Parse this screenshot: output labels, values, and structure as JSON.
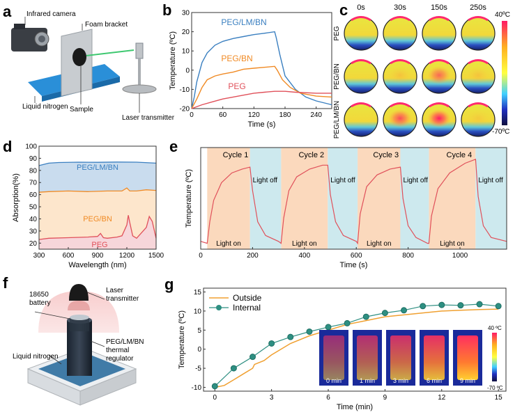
{
  "panel_letters": {
    "a": "a",
    "b": "b",
    "c": "c",
    "d": "d",
    "e": "e",
    "f": "f",
    "g": "g"
  },
  "panel_a": {
    "labels": {
      "camera": "Infrared camera",
      "bracket": "Foam bracket",
      "nitrogen": "Liquid nitrogen",
      "sample": "Sample",
      "laser": "Laser transmitter"
    }
  },
  "panel_c": {
    "times": [
      "0s",
      "30s",
      "150s",
      "250s"
    ],
    "rows": [
      "PEG",
      "PEG/BN",
      "PEG/LM/BN"
    ],
    "scale_max": "40ºC",
    "scale_min": "-70ºC",
    "colors": {
      "hot": "#ff2a6e",
      "mid": "#ffe03a",
      "cold": "#1a2a8a"
    }
  },
  "panel_f": {
    "labels": {
      "battery": "18650\nbattery",
      "laser": "Laser\ntransmitter",
      "regulator": "PEG/LM/BN\nthermal\nregulator",
      "nitrogen": "Liquid nitrogen"
    }
  },
  "panel_g_insets": {
    "times": [
      "0 min",
      "1 min",
      "3 min",
      "6 min",
      "9 min"
    ],
    "scale_max": "40 ºC",
    "scale_min": "-70 ºC"
  },
  "chart_data": [
    {
      "id": "b",
      "type": "line",
      "xlabel": "Time (s)",
      "ylabel": "Temperature (ºC)",
      "xlim": [
        0,
        270
      ],
      "ylim": [
        -20,
        30
      ],
      "xticks": [
        0,
        60,
        120,
        180,
        240
      ],
      "yticks": [
        -20,
        -10,
        0,
        10,
        20,
        30
      ],
      "series": [
        {
          "name": "PEG/LM/BN",
          "color": "#3a7fc0",
          "x": [
            0,
            5,
            10,
            20,
            30,
            45,
            60,
            80,
            100,
            120,
            140,
            160,
            163,
            170,
            180,
            200,
            220,
            240,
            270
          ],
          "y": [
            -20,
            -14,
            -6,
            4,
            9,
            13,
            15,
            16.5,
            17.5,
            18.5,
            19.2,
            20,
            17,
            8,
            -3,
            -10,
            -14,
            -16,
            -18
          ]
        },
        {
          "name": "PEG/BN",
          "color": "#f08a24",
          "x": [
            0,
            10,
            20,
            30,
            45,
            60,
            80,
            100,
            120,
            140,
            160,
            165,
            175,
            190,
            210,
            240,
            270
          ],
          "y": [
            -20,
            -15,
            -9,
            -5,
            -3,
            -2,
            -1,
            0.5,
            1,
            1.5,
            2,
            0,
            -5,
            -9,
            -12,
            -13.5,
            -14
          ]
        },
        {
          "name": "PEG",
          "color": "#e0505a",
          "x": [
            0,
            20,
            40,
            60,
            80,
            100,
            120,
            140,
            160,
            180,
            200,
            240,
            270
          ],
          "y": [
            -20,
            -18,
            -16.5,
            -15,
            -14,
            -13,
            -12,
            -11.5,
            -11,
            -11,
            -11.5,
            -12,
            -12
          ]
        }
      ]
    },
    {
      "id": "d",
      "type": "area",
      "xlabel": "Wavelength (nm)",
      "ylabel": "Absorption(%)",
      "xlim": [
        300,
        1500
      ],
      "ylim": [
        15,
        100
      ],
      "xticks": [
        300,
        600,
        900,
        1200,
        1500
      ],
      "yticks": [
        20,
        30,
        40,
        50,
        60,
        70,
        80,
        90,
        100
      ],
      "series": [
        {
          "name": "PEG/LM/BN",
          "color": "#3a7fc0",
          "fill": "#c9dcee",
          "x": [
            300,
            400,
            500,
            700,
            900,
            1100,
            1300,
            1500
          ],
          "y": [
            84,
            86,
            86.5,
            86.8,
            86.7,
            86.9,
            86.8,
            86
          ]
        },
        {
          "name": "PEG/BN",
          "color": "#f08a24",
          "fill": "#fde6cc",
          "x": [
            300,
            400,
            600,
            800,
            1000,
            1150,
            1200,
            1230,
            1300,
            1400,
            1500
          ],
          "y": [
            62,
            62.5,
            63,
            62.5,
            63,
            63,
            65.5,
            63,
            63,
            64,
            63.5
          ]
        },
        {
          "name": "PEG",
          "color": "#e0505a",
          "fill": "#f7d6da",
          "x": [
            300,
            400,
            600,
            800,
            900,
            930,
            960,
            1000,
            1100,
            1150,
            1200,
            1215,
            1230,
            1260,
            1300,
            1400,
            1430,
            1460,
            1500
          ],
          "y": [
            23,
            24,
            24.5,
            25,
            25.5,
            28,
            24.5,
            24,
            25,
            26,
            35,
            43,
            37,
            26,
            24,
            33,
            42,
            38,
            24
          ]
        }
      ]
    },
    {
      "id": "e",
      "type": "line",
      "xlabel": "Time (s)",
      "ylabel": "Temperature (ºC)",
      "xlim": [
        0,
        1180
      ],
      "ylim": [
        -22,
        30
      ],
      "xticks": [
        0,
        200,
        400,
        600,
        800,
        1000
      ],
      "cycles": [
        "Cycle 1",
        "Cycle 2",
        "Cycle 3",
        "Cycle 4"
      ],
      "light_on": "Light on",
      "light_off": "Light off",
      "on_intervals": [
        [
          25,
          190
        ],
        [
          310,
          490
        ],
        [
          605,
          770
        ],
        [
          880,
          1060
        ]
      ],
      "off_intervals": [
        [
          190,
          310
        ],
        [
          490,
          605
        ],
        [
          770,
          880
        ],
        [
          1060,
          1180
        ]
      ],
      "series": [
        {
          "name": "",
          "color": "#e0505a",
          "x": [
            0,
            25,
            35,
            50,
            80,
            120,
            160,
            190,
            200,
            220,
            250,
            300,
            310,
            320,
            340,
            370,
            420,
            470,
            490,
            500,
            520,
            550,
            600,
            605,
            615,
            640,
            680,
            730,
            770,
            780,
            800,
            830,
            875,
            880,
            890,
            915,
            960,
            1020,
            1060,
            1070,
            1090,
            1120,
            1180
          ],
          "y": [
            -18,
            -19,
            -8,
            3,
            12,
            17,
            19,
            20,
            8,
            -8,
            -15,
            -18,
            -19,
            -6,
            8,
            15,
            19,
            21,
            21,
            6,
            -8,
            -15,
            -18,
            -19,
            -4,
            10,
            16,
            19,
            20,
            4,
            -10,
            -16,
            -19,
            -19,
            -5,
            9,
            17,
            22,
            24,
            5,
            -10,
            -16,
            -18
          ]
        }
      ]
    },
    {
      "id": "g",
      "type": "line",
      "xlabel": "Time (min)",
      "ylabel": "Temperature (ºC)",
      "xlim": [
        -0.6,
        15.4
      ],
      "ylim": [
        -11,
        16
      ],
      "xticks": [
        0,
        3,
        6,
        9,
        12,
        15
      ],
      "yticks": [
        -10,
        -5,
        0,
        5,
        10,
        15
      ],
      "series": [
        {
          "name": "Outside",
          "color": "#f0a030",
          "x": [
            0,
            0.5,
            1,
            1.5,
            2,
            2.1,
            2.6,
            3,
            4,
            5,
            6,
            7,
            8,
            9,
            10,
            11,
            12,
            13,
            14,
            15
          ],
          "y": [
            -10,
            -9.5,
            -8,
            -6.5,
            -5,
            -4,
            -3,
            -1.5,
            1.5,
            3.5,
            5,
            6.5,
            7.5,
            8.5,
            9,
            9.5,
            10,
            10.2,
            10.4,
            10.5
          ]
        },
        {
          "name": "Internal",
          "color": "#2e8f82",
          "x": [
            0,
            1,
            2,
            3,
            4,
            5,
            6,
            7,
            8,
            9,
            10,
            11,
            12,
            13,
            14,
            15
          ],
          "y": [
            -9.7,
            -5,
            -2,
            1.5,
            3.2,
            4.6,
            5.8,
            6.8,
            8.5,
            9.5,
            10.2,
            11.3,
            11.6,
            11.5,
            11.8,
            11.3
          ]
        }
      ]
    }
  ]
}
